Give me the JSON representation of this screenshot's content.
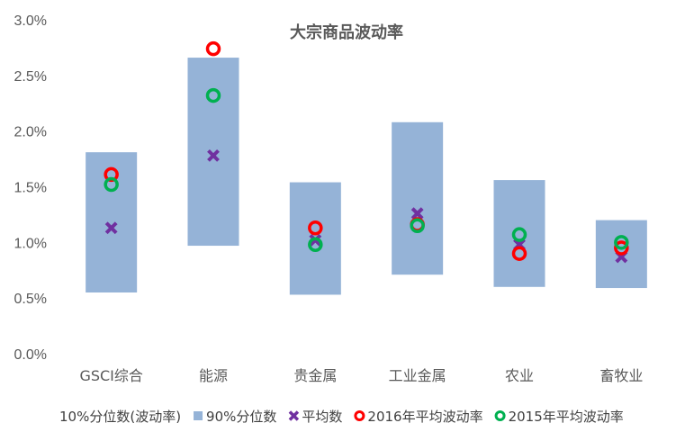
{
  "chart_data": {
    "type": "floating-bar-with-markers",
    "title": "大宗商品波动率",
    "categories": [
      "GSCI综合",
      "能源",
      "贵金属",
      "工业金属",
      "农业",
      "畜牧业"
    ],
    "yticks": [
      "0.0%",
      "0.5%",
      "1.0%",
      "1.5%",
      "2.0%",
      "2.5%",
      "3.0%"
    ],
    "ylim": [
      0,
      0.03
    ],
    "grid": false,
    "legend_position": "bottom",
    "series": [
      {
        "name": "10%分位数(波动率)",
        "kind": "bar-base",
        "values": [
          0.0055,
          0.0097,
          0.0053,
          0.0071,
          0.006,
          0.0059
        ]
      },
      {
        "name": "90%分位数",
        "kind": "bar-top",
        "color": "#95b3d7",
        "values": [
          0.0181,
          0.0266,
          0.0154,
          0.0208,
          0.0156,
          0.012
        ]
      },
      {
        "name": "平均数",
        "kind": "x-marker",
        "color": "#7030a0",
        "values": [
          0.0113,
          0.0178,
          0.0102,
          0.0126,
          0.0098,
          0.0087
        ]
      },
      {
        "name": "2016年平均波动率",
        "kind": "circle-marker",
        "color": "#ff0000",
        "values": [
          0.0161,
          0.0274,
          0.0113,
          0.0116,
          0.009,
          0.0095
        ]
      },
      {
        "name": "2015年平均波动率",
        "kind": "circle-marker",
        "color": "#00b050",
        "values": [
          0.0152,
          0.0232,
          0.0098,
          0.0115,
          0.0107,
          0.01
        ]
      }
    ]
  }
}
